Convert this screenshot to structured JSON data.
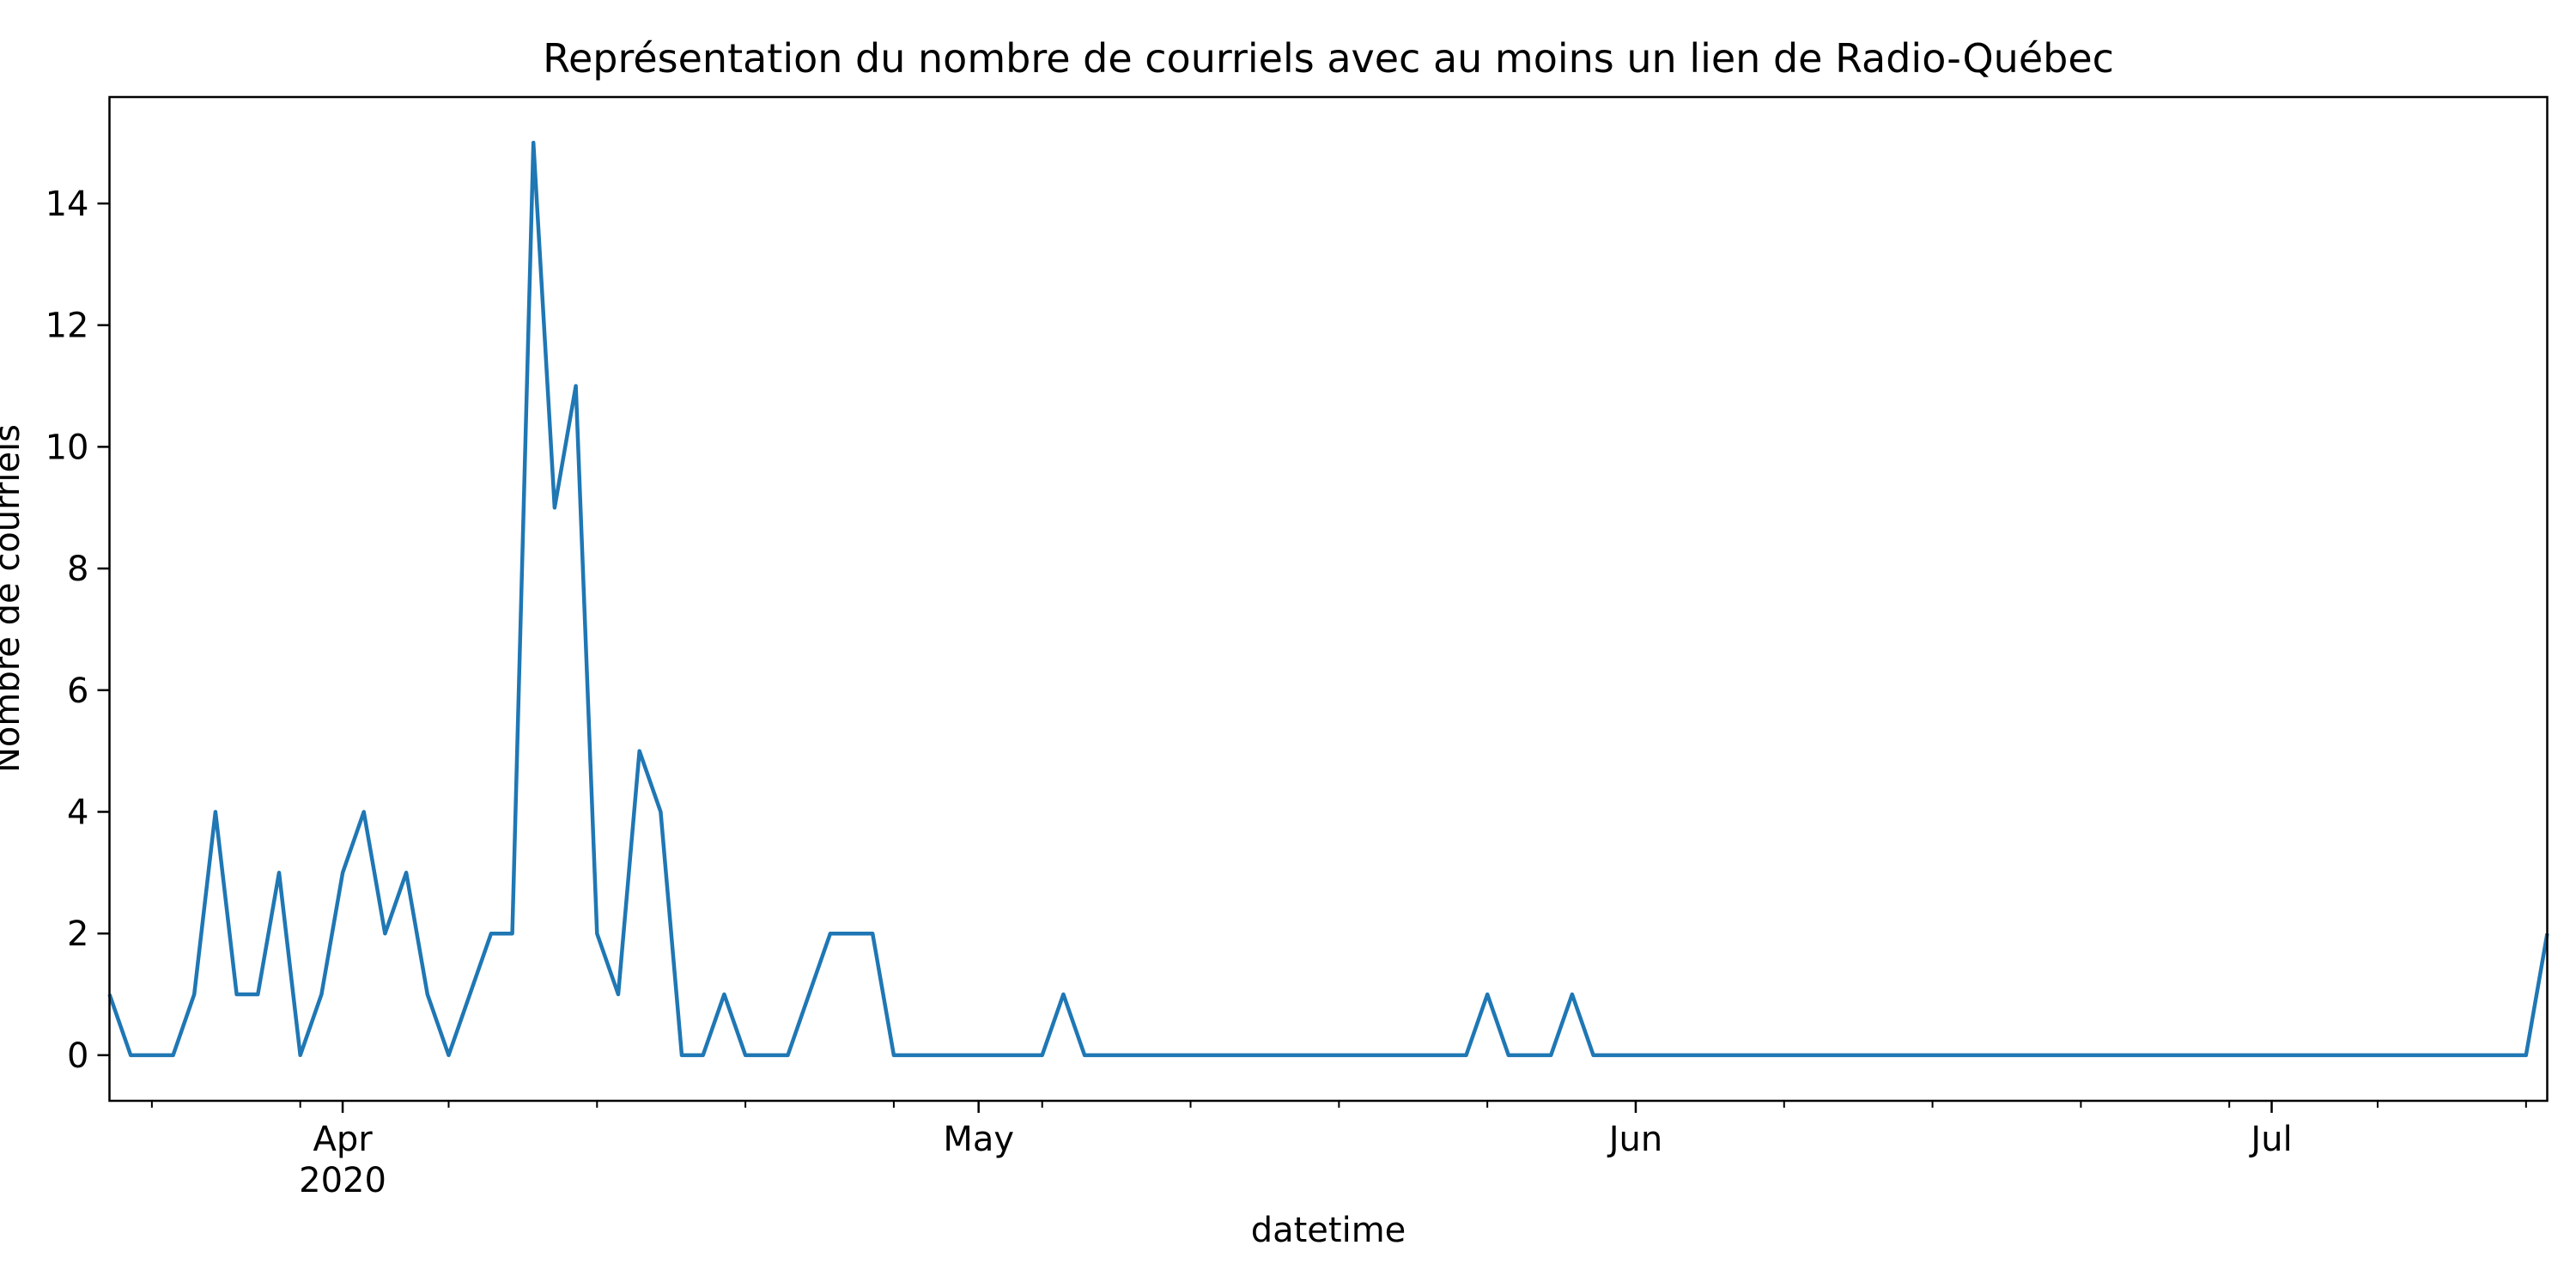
{
  "chart_data": {
    "type": "line",
    "title": "Représentation du nombre de courriels avec au moins un lien de Radio-Québec",
    "xlabel": "datetime",
    "ylabel": "Nombre de courriels",
    "x_start": "2020-03-21",
    "x_end": "2020-07-14",
    "ylim": [
      -0.75,
      15.75
    ],
    "yticks": [
      0,
      2,
      4,
      6,
      8,
      10,
      12,
      14
    ],
    "xticks_major": [
      {
        "date": "2020-04-01",
        "label": "Apr",
        "sublabel": "2020"
      },
      {
        "date": "2020-05-01",
        "label": "May",
        "sublabel": ""
      },
      {
        "date": "2020-06-01",
        "label": "Jun",
        "sublabel": ""
      },
      {
        "date": "2020-07-01",
        "label": "Jul",
        "sublabel": ""
      }
    ],
    "grid": false,
    "color": "#1f77b4",
    "series": [
      {
        "x": [
          "2020-03-21",
          "2020-03-22",
          "2020-03-23",
          "2020-03-24",
          "2020-03-25",
          "2020-03-26",
          "2020-03-27",
          "2020-03-28",
          "2020-03-29",
          "2020-03-30",
          "2020-03-31",
          "2020-04-01",
          "2020-04-02",
          "2020-04-03",
          "2020-04-04",
          "2020-04-05",
          "2020-04-06",
          "2020-04-07",
          "2020-04-08",
          "2020-04-09",
          "2020-04-10",
          "2020-04-11",
          "2020-04-12",
          "2020-04-13",
          "2020-04-14",
          "2020-04-15",
          "2020-04-16",
          "2020-04-17",
          "2020-04-18",
          "2020-04-19",
          "2020-04-20",
          "2020-04-21",
          "2020-04-22",
          "2020-04-23",
          "2020-04-24",
          "2020-04-25",
          "2020-04-26",
          "2020-04-27",
          "2020-04-28",
          "2020-04-29",
          "2020-04-30",
          "2020-05-01",
          "2020-05-02",
          "2020-05-03",
          "2020-05-04",
          "2020-05-05",
          "2020-05-06",
          "2020-05-07",
          "2020-05-08",
          "2020-05-09",
          "2020-05-10",
          "2020-05-11",
          "2020-05-12",
          "2020-05-13",
          "2020-05-14",
          "2020-05-15",
          "2020-05-16",
          "2020-05-17",
          "2020-05-18",
          "2020-05-19",
          "2020-05-20",
          "2020-05-21",
          "2020-05-22",
          "2020-05-23",
          "2020-05-24",
          "2020-05-25",
          "2020-05-26",
          "2020-05-27",
          "2020-05-28",
          "2020-05-29",
          "2020-05-30",
          "2020-05-31",
          "2020-06-01",
          "2020-06-02",
          "2020-06-03",
          "2020-06-04",
          "2020-06-05",
          "2020-06-06",
          "2020-06-07",
          "2020-06-08",
          "2020-06-09",
          "2020-06-10",
          "2020-06-11",
          "2020-06-12",
          "2020-06-13",
          "2020-06-14",
          "2020-06-15",
          "2020-06-16",
          "2020-06-17",
          "2020-06-18",
          "2020-06-19",
          "2020-06-20",
          "2020-06-21",
          "2020-06-22",
          "2020-06-23",
          "2020-06-24",
          "2020-06-25",
          "2020-06-26",
          "2020-06-27",
          "2020-06-28",
          "2020-06-29",
          "2020-06-30",
          "2020-07-01",
          "2020-07-02",
          "2020-07-03",
          "2020-07-04",
          "2020-07-05",
          "2020-07-06",
          "2020-07-07",
          "2020-07-08",
          "2020-07-09",
          "2020-07-10",
          "2020-07-11",
          "2020-07-12",
          "2020-07-13",
          "2020-07-14"
        ],
        "y": [
          1,
          0,
          0,
          0,
          1,
          4,
          1,
          1,
          3,
          0,
          1,
          3,
          4,
          2,
          3,
          1,
          0,
          1,
          2,
          2,
          15,
          9,
          11,
          2,
          1,
          5,
          4,
          0,
          0,
          1,
          0,
          0,
          0,
          1,
          2,
          2,
          2,
          0,
          0,
          0,
          0,
          0,
          0,
          0,
          0,
          1,
          0,
          0,
          0,
          0,
          0,
          0,
          0,
          0,
          0,
          0,
          0,
          0,
          0,
          0,
          0,
          0,
          0,
          0,
          0,
          1,
          0,
          0,
          0,
          1,
          0,
          0,
          0,
          0,
          0,
          0,
          0,
          0,
          0,
          0,
          0,
          0,
          0,
          0,
          0,
          0,
          0,
          0,
          0,
          0,
          0,
          0,
          0,
          0,
          0,
          0,
          0,
          0,
          0,
          0,
          0,
          0,
          0,
          0,
          0,
          0,
          0,
          0,
          0,
          0,
          0,
          0,
          0,
          0,
          0,
          2
        ]
      }
    ]
  }
}
